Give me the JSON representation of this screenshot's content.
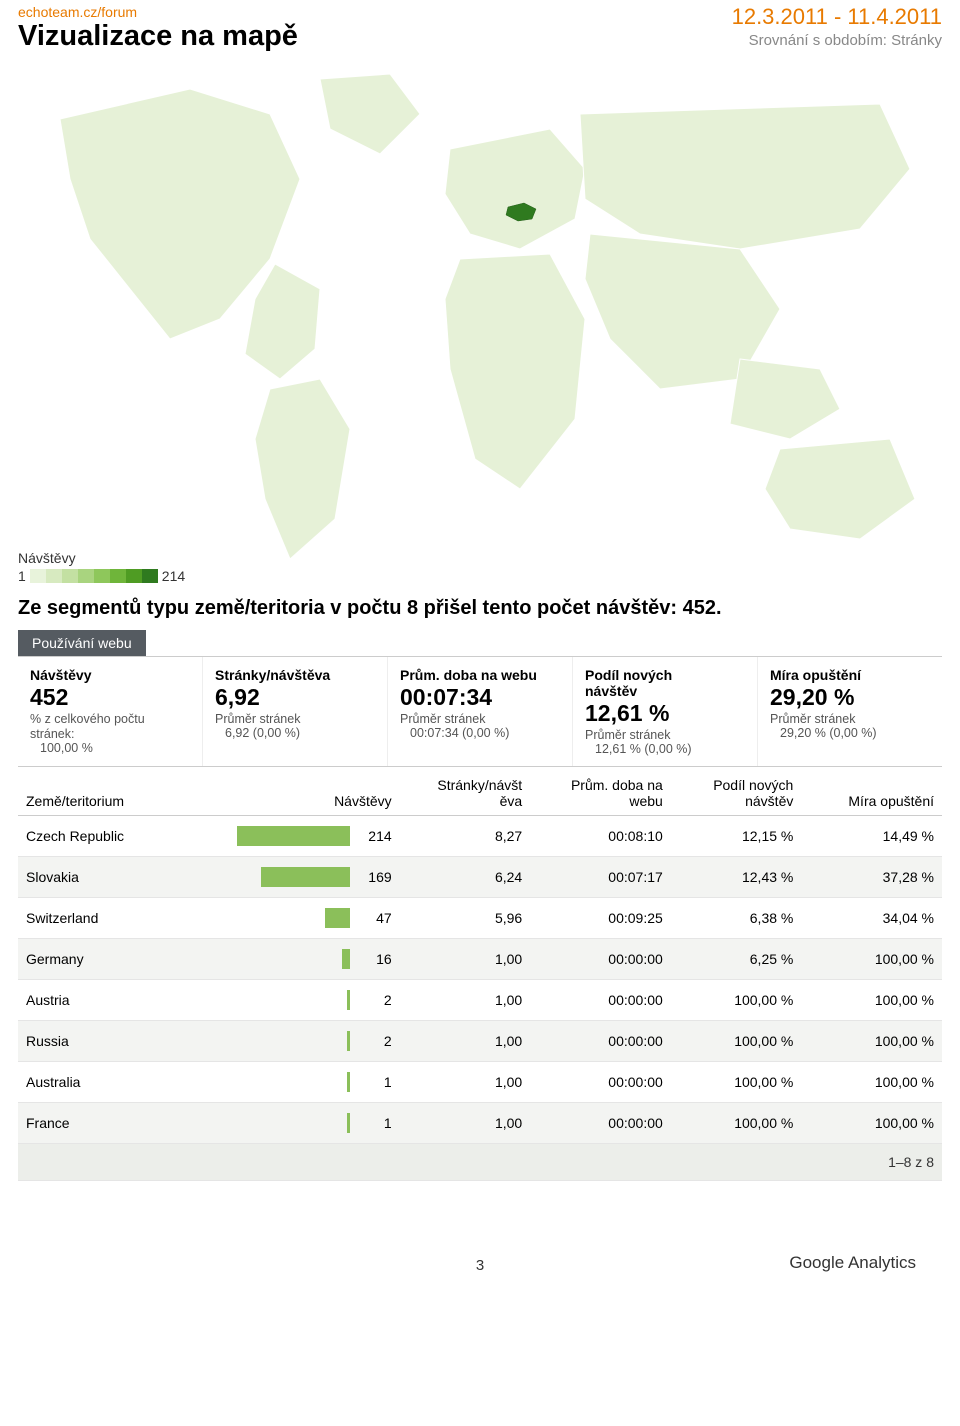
{
  "header": {
    "site": "echoteam.cz/forum",
    "title": "Vizualizace na mapě",
    "date_range": "12.3.2011 - 11.4.2011",
    "compare_label": "Srovnání s obdobím: Stránky"
  },
  "map": {
    "background": "#ffffff",
    "land_fill": "#e6f1d7",
    "land_stroke": "#ffffff",
    "highlight_fill": "#2f7a1f",
    "legend": {
      "title": "Návštěvy",
      "min": "1",
      "max": "214",
      "gradient": [
        "#e8f3db",
        "#d7eac0",
        "#c3e0a2",
        "#a9d47f",
        "#8ec75b",
        "#6fb53a",
        "#4f9c23",
        "#2f7a1f"
      ]
    }
  },
  "summary_line": "Ze segmentů typu země/teritoria v počtu 8 přišel tento počet návštěv: 452.",
  "tab_label": "Používání webu",
  "metrics": [
    {
      "title": "Návštěvy",
      "value": "452",
      "sub1": "% z celkového počtu",
      "sub2a": "stránek:",
      "sub2b": "100,00 %"
    },
    {
      "title": "Stránky/návštěva",
      "value": "6,92",
      "sub1": "Průměr stránek",
      "sub2a": "",
      "sub2b": "6,92 (0,00 %)"
    },
    {
      "title": "Prům. doba na webu",
      "value": "00:07:34",
      "sub1": "Průměr stránek",
      "sub2a": "",
      "sub2b": "00:07:34 (0,00 %)"
    },
    {
      "title_a": "Podíl nových",
      "title_b": "návštěv",
      "value": "12,61 %",
      "sub1": "Průměr stránek",
      "sub2a": "",
      "sub2b": "12,61 % (0,00 %)"
    },
    {
      "title": "Míra opuštění",
      "value": "29,20 %",
      "sub1": "Průměr stránek",
      "sub2a": "",
      "sub2b": "29,20 % (0,00 %)"
    }
  ],
  "table": {
    "columns": {
      "country": "Země/teritorium",
      "visits": "Návštěvy",
      "pages_per_visit_a": "Stránky/návšt",
      "pages_per_visit_b": "ěva",
      "avg_time_a": "Prům. doba na",
      "avg_time_b": "webu",
      "new_visits_a": "Podíl nových",
      "new_visits_b": "návštěv",
      "bounce": "Míra opuštění"
    },
    "max_visits": 214,
    "bar_color": "#8bbf5a",
    "rows": [
      {
        "country": "Czech Republic",
        "visits": "214",
        "pages": "8,27",
        "time": "00:08:10",
        "new": "12,15 %",
        "bounce": "14,49 %"
      },
      {
        "country": "Slovakia",
        "visits": "169",
        "pages": "6,24",
        "time": "00:07:17",
        "new": "12,43 %",
        "bounce": "37,28 %"
      },
      {
        "country": "Switzerland",
        "visits": "47",
        "pages": "5,96",
        "time": "00:09:25",
        "new": "6,38 %",
        "bounce": "34,04 %"
      },
      {
        "country": "Germany",
        "visits": "16",
        "pages": "1,00",
        "time": "00:00:00",
        "new": "6,25 %",
        "bounce": "100,00 %"
      },
      {
        "country": "Austria",
        "visits": "2",
        "pages": "1,00",
        "time": "00:00:00",
        "new": "100,00 %",
        "bounce": "100,00 %"
      },
      {
        "country": "Russia",
        "visits": "2",
        "pages": "1,00",
        "time": "00:00:00",
        "new": "100,00 %",
        "bounce": "100,00 %"
      },
      {
        "country": "Australia",
        "visits": "1",
        "pages": "1,00",
        "time": "00:00:00",
        "new": "100,00 %",
        "bounce": "100,00 %"
      },
      {
        "country": "France",
        "visits": "1",
        "pages": "1,00",
        "time": "00:00:00",
        "new": "100,00 %",
        "bounce": "100,00 %"
      }
    ],
    "pager": "1–8 z 8"
  },
  "footer": {
    "page_number": "3",
    "brand": "Google Analytics"
  }
}
